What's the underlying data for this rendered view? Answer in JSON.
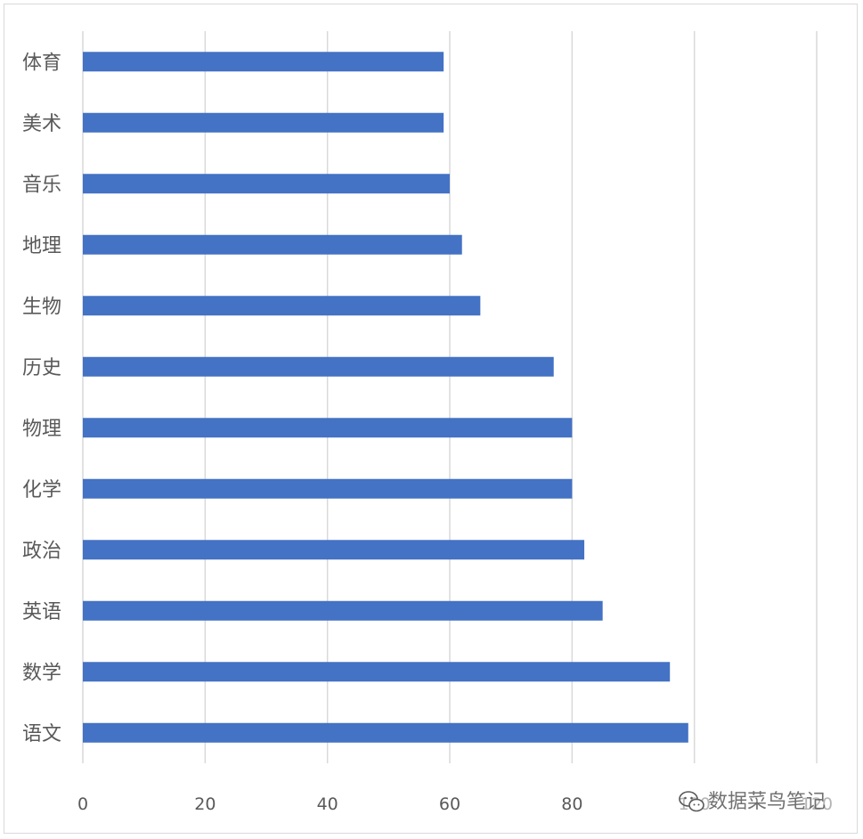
{
  "chart_data": {
    "type": "bar",
    "orientation": "horizontal",
    "categories": [
      "体育",
      "美术",
      "音乐",
      "地理",
      "生物",
      "历史",
      "物理",
      "化学",
      "政治",
      "英语",
      "数学",
      "语文"
    ],
    "values": [
      59,
      59,
      60,
      62,
      65,
      77,
      80,
      80,
      82,
      85,
      96,
      99
    ],
    "title": "",
    "xlabel": "",
    "ylabel": "",
    "xlim": [
      0,
      120
    ],
    "xticks": [
      "0",
      "20",
      "40",
      "60",
      "80",
      "100",
      "120"
    ],
    "grid": "vertical",
    "legend": "none",
    "bar_color": "#4472C4"
  },
  "watermark": {
    "text": "数据菜鸟笔记",
    "icon": "wechat-icon"
  }
}
